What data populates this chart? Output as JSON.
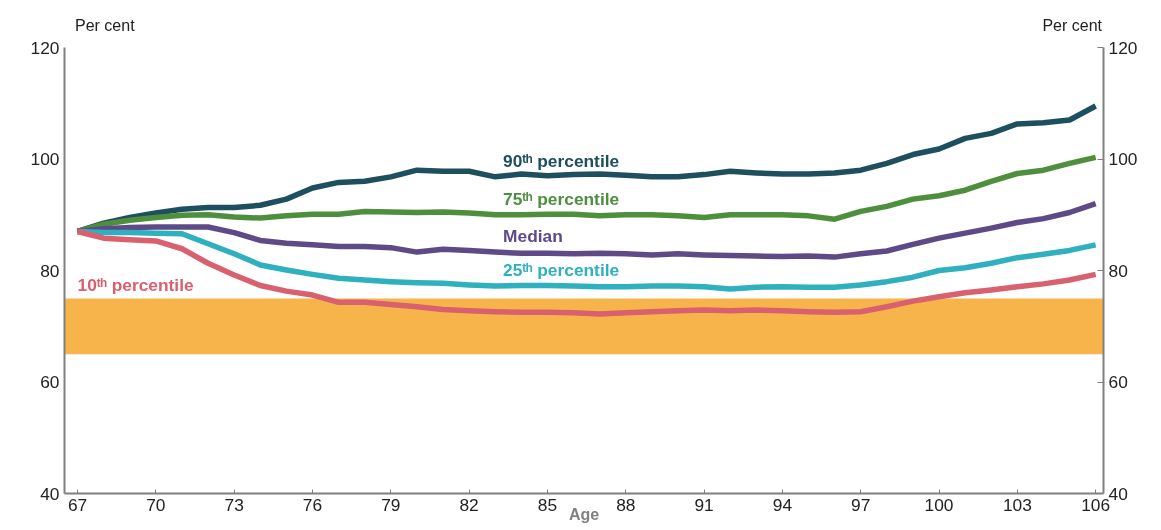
{
  "chart_data": {
    "type": "line",
    "xlabel": "Age",
    "ylabel": "Per cent",
    "y2label": "Per cent",
    "x": [
      67,
      68,
      69,
      70,
      71,
      72,
      73,
      74,
      75,
      76,
      77,
      78,
      79,
      80,
      81,
      82,
      83,
      84,
      85,
      86,
      87,
      88,
      89,
      90,
      91,
      92,
      93,
      94,
      95,
      96,
      97,
      98,
      99,
      100,
      101,
      102,
      103,
      104,
      105,
      106
    ],
    "xlim": [
      66.5,
      106.3
    ],
    "xticks": [
      67,
      70,
      73,
      76,
      79,
      82,
      85,
      88,
      91,
      94,
      97,
      100,
      103,
      106
    ],
    "ylim": [
      40,
      120
    ],
    "yticks": [
      40,
      60,
      80,
      100,
      120
    ],
    "y2lim": [
      40,
      120
    ],
    "y2ticks": [
      40,
      60,
      80,
      100,
      120
    ],
    "grid": false,
    "line_style": "solid",
    "marker": "none",
    "bands": [
      {
        "axis": "y",
        "from": 65,
        "to": 75,
        "color": "#f7b44a"
      }
    ],
    "series": [
      {
        "name": "90ᵗʰ percentile",
        "color": "#1d4f5e",
        "values": [
          87,
          88.5,
          89.5,
          90.3,
          91,
          91.3,
          91.3,
          91.7,
          92.8,
          94.8,
          95.8,
          96,
          96.8,
          98,
          97.8,
          97.8,
          96.8,
          97.3,
          97,
          97.2,
          97.3,
          97.1,
          96.8,
          96.8,
          97.2,
          97.8,
          97.5,
          97.3,
          97.3,
          97.5,
          98,
          99.2,
          100.8,
          101.8,
          103.7,
          104.6,
          106.3,
          106.5,
          107,
          109.5
        ]
      },
      {
        "name": "75ᵗʰ percentile",
        "color": "#4e8f3e",
        "values": [
          87,
          88.3,
          89,
          89.5,
          89.9,
          90,
          89.6,
          89.4,
          89.8,
          90.1,
          90.1,
          90.6,
          90.5,
          90.4,
          90.5,
          90.3,
          90,
          90,
          90.1,
          90.1,
          89.8,
          90,
          90,
          89.8,
          89.5,
          90,
          90,
          90,
          89.8,
          89.2,
          90.6,
          91.5,
          92.8,
          93.4,
          94.4,
          96,
          97.4,
          98,
          99.2,
          100.3
        ]
      },
      {
        "name": "Median",
        "color": "#5e4a86",
        "values": [
          87,
          87.5,
          87.7,
          87.8,
          87.8,
          87.8,
          86.8,
          85.4,
          84.9,
          84.6,
          84.3,
          84.3,
          84.1,
          83.3,
          83.8,
          83.6,
          83.3,
          83.1,
          83.1,
          83,
          83.1,
          83,
          82.8,
          83,
          82.8,
          82.7,
          82.6,
          82.5,
          82.6,
          82.4,
          83,
          83.5,
          84.7,
          85.8,
          86.7,
          87.6,
          88.6,
          89.3,
          90.4,
          92
        ]
      },
      {
        "name": "25ᵗʰ percentile",
        "color": "#2fb0bf",
        "values": [
          87,
          86.8,
          86.8,
          86.7,
          86.6,
          84.8,
          83,
          81,
          80.1,
          79.3,
          78.6,
          78.3,
          78,
          77.8,
          77.7,
          77.4,
          77.2,
          77.3,
          77.3,
          77.2,
          77.1,
          77.1,
          77.2,
          77.2,
          77.1,
          76.7,
          77,
          77.1,
          77,
          77,
          77.4,
          78,
          78.8,
          80,
          80.5,
          81.3,
          82.3,
          82.9,
          83.6,
          84.6
        ]
      },
      {
        "name": "10ᵗʰ percentile",
        "color": "#d9606e",
        "values": [
          87,
          85.8,
          85.5,
          85.3,
          83.9,
          81.3,
          79.2,
          77.3,
          76.3,
          75.6,
          74.3,
          74.3,
          73.9,
          73.5,
          73,
          72.8,
          72.6,
          72.5,
          72.5,
          72.4,
          72.2,
          72.4,
          72.6,
          72.8,
          72.9,
          72.8,
          72.9,
          72.8,
          72.6,
          72.5,
          72.6,
          73.5,
          74.5,
          75.3,
          76,
          76.5,
          77.1,
          77.6,
          78.3,
          79.3
        ]
      }
    ]
  }
}
